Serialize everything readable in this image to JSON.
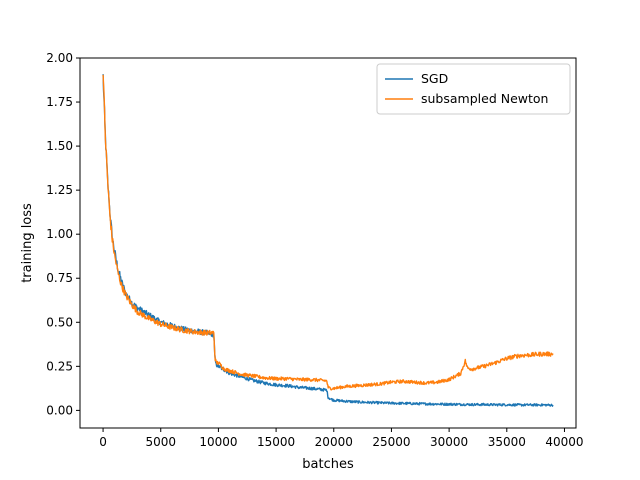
{
  "chart_data": {
    "type": "line",
    "title": "",
    "xlabel": "batches",
    "ylabel": "training loss",
    "xlim": [
      -2000,
      41000
    ],
    "ylim": [
      -0.1,
      2.0
    ],
    "xticks": [
      0,
      5000,
      10000,
      15000,
      20000,
      25000,
      30000,
      35000,
      40000
    ],
    "xtick_labels": [
      "0",
      "5000",
      "10000",
      "15000",
      "20000",
      "25000",
      "30000",
      "35000",
      "40000"
    ],
    "yticks": [
      0.0,
      0.25,
      0.5,
      0.75,
      1.0,
      1.25,
      1.5,
      1.75,
      2.0
    ],
    "ytick_labels": [
      "0.00",
      "0.25",
      "0.50",
      "0.75",
      "1.00",
      "1.25",
      "1.50",
      "1.75",
      "2.00"
    ],
    "grid": false,
    "legend": {
      "position": "top-right"
    },
    "series": [
      {
        "name": "SGD",
        "color": "#1f77b4",
        "x": [
          0,
          200,
          400,
          600,
          800,
          1000,
          1300,
          1600,
          2000,
          2500,
          3000,
          3500,
          4000,
          5000,
          6000,
          7000,
          8000,
          9000,
          9600,
          9700,
          9800,
          10000,
          10500,
          11000,
          12000,
          13000,
          14000,
          15000,
          16000,
          17000,
          18000,
          19000,
          19400,
          19500,
          19700,
          20000,
          21000,
          22000,
          23000,
          24000,
          25000,
          26000,
          27000,
          28000,
          29000,
          30000,
          31000,
          32000,
          33000,
          34000,
          35000,
          36000,
          37000,
          38000,
          39000
        ],
        "y": [
          1.9,
          1.55,
          1.3,
          1.12,
          0.98,
          0.9,
          0.8,
          0.73,
          0.66,
          0.61,
          0.58,
          0.56,
          0.54,
          0.5,
          0.48,
          0.46,
          0.45,
          0.44,
          0.43,
          0.29,
          0.26,
          0.25,
          0.23,
          0.21,
          0.19,
          0.17,
          0.155,
          0.145,
          0.14,
          0.13,
          0.125,
          0.118,
          0.115,
          0.075,
          0.065,
          0.058,
          0.052,
          0.048,
          0.045,
          0.043,
          0.041,
          0.04,
          0.038,
          0.037,
          0.036,
          0.035,
          0.034,
          0.033,
          0.033,
          0.032,
          0.032,
          0.031,
          0.031,
          0.031,
          0.03
        ]
      },
      {
        "name": "subsampled Newton",
        "color": "#ff7f0e",
        "x": [
          0,
          200,
          400,
          600,
          800,
          1000,
          1300,
          1600,
          2000,
          2500,
          3000,
          3500,
          4000,
          5000,
          6000,
          7000,
          8000,
          9000,
          9600,
          9700,
          9800,
          10000,
          10500,
          11000,
          12000,
          13000,
          14000,
          15000,
          16000,
          17000,
          18000,
          19000,
          19400,
          19500,
          19700,
          20000,
          21000,
          22000,
          23000,
          24000,
          25000,
          26000,
          27000,
          28000,
          29000,
          30000,
          31000,
          31400,
          31600,
          32000,
          33000,
          34000,
          35000,
          36000,
          37000,
          38000,
          39000
        ],
        "y": [
          1.93,
          1.55,
          1.3,
          1.1,
          0.97,
          0.88,
          0.78,
          0.71,
          0.65,
          0.6,
          0.56,
          0.54,
          0.52,
          0.49,
          0.47,
          0.455,
          0.445,
          0.44,
          0.44,
          0.3,
          0.27,
          0.27,
          0.235,
          0.225,
          0.205,
          0.195,
          0.185,
          0.18,
          0.18,
          0.175,
          0.175,
          0.17,
          0.168,
          0.13,
          0.125,
          0.125,
          0.135,
          0.14,
          0.145,
          0.15,
          0.16,
          0.165,
          0.16,
          0.155,
          0.16,
          0.175,
          0.21,
          0.28,
          0.24,
          0.235,
          0.25,
          0.27,
          0.295,
          0.31,
          0.315,
          0.32,
          0.32
        ]
      }
    ]
  }
}
